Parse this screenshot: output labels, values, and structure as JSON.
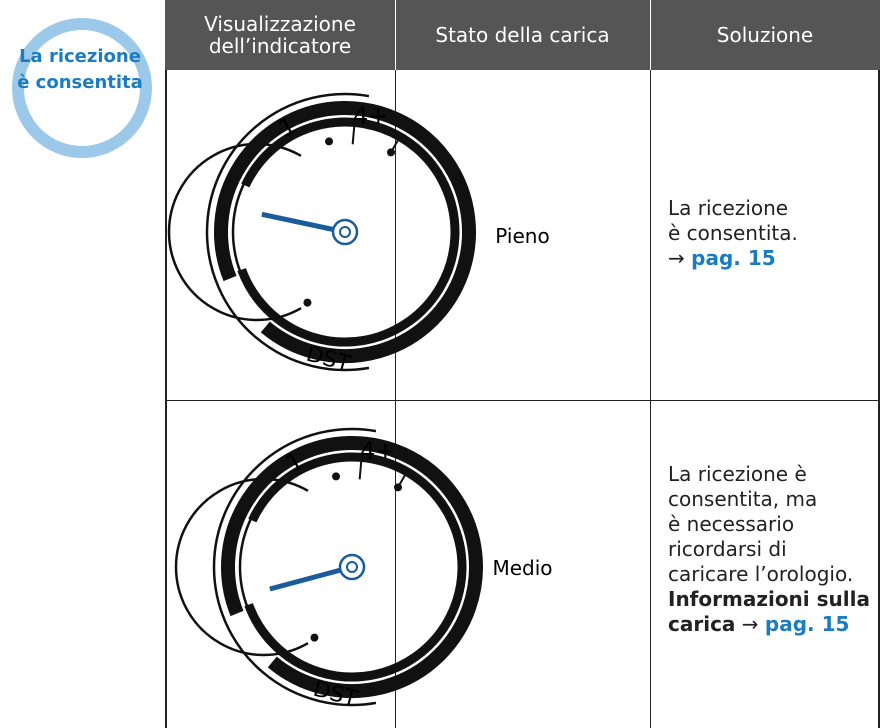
{
  "badge": {
    "lines": [
      "La ricezione",
      "è consentita"
    ]
  },
  "table": {
    "headers": [
      [
        "Visualizzazione",
        "dell’indicatore"
      ],
      [
        "Stato della carica"
      ],
      [
        "Soluzione"
      ]
    ],
    "rows": [
      {
        "dial": {
          "labels": [
            "4+",
            "1",
            "DST"
          ]
        },
        "state": "Pieno",
        "solution": [
          [
            "La ricezione"
          ],
          [
            "è consentita."
          ],
          [
            "→",
            "pag. 15"
          ]
        ]
      },
      {
        "dial": {
          "labels": [
            "4+",
            "1",
            "DST"
          ]
        },
        "state": "Medio",
        "solution": [
          [
            "La ricezione è"
          ],
          [
            "consentita, ma"
          ],
          [
            "è necessario"
          ],
          [
            "ricordarsi di"
          ],
          [
            "caricare l’orologio."
          ],
          [
            "Informazioni sulla"
          ],
          [
            "carica",
            "→",
            "pag. 15"
          ]
        ]
      }
    ]
  }
}
